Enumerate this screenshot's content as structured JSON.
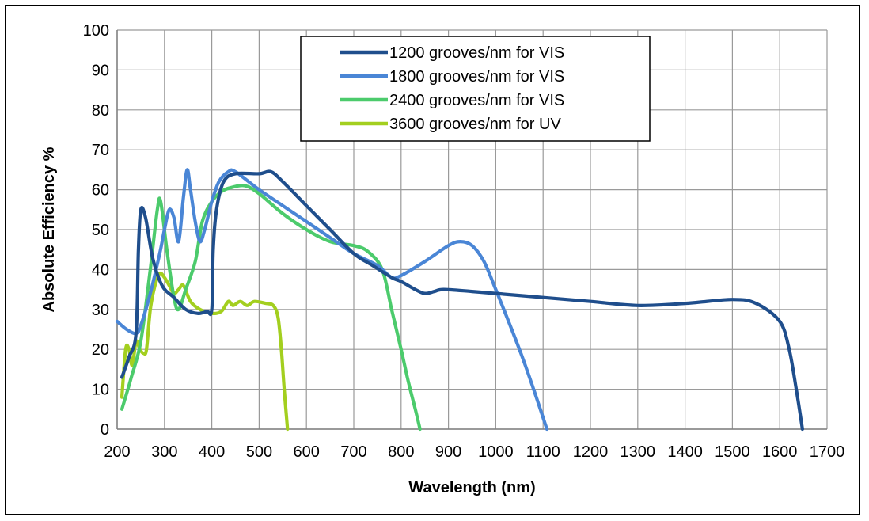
{
  "chart_data": {
    "type": "line",
    "title": "",
    "xlabel": "Wavelength (nm)",
    "ylabel": "Absolute  Efficiency %",
    "xlim": [
      200,
      1700
    ],
    "ylim": [
      0,
      100
    ],
    "xticks": [
      200,
      300,
      400,
      500,
      600,
      700,
      800,
      900,
      1000,
      1100,
      1200,
      1300,
      1400,
      1500,
      1600,
      1700
    ],
    "yticks": [
      0,
      10,
      20,
      30,
      40,
      50,
      60,
      70,
      80,
      90,
      100
    ],
    "grid": true,
    "legend_position": "top-center",
    "series": [
      {
        "name": "1200 grooves/nm for VIS",
        "color": "#1f4e8c",
        "points": [
          [
            210,
            13
          ],
          [
            225,
            18
          ],
          [
            240,
            24
          ],
          [
            245,
            45
          ],
          [
            250,
            55
          ],
          [
            260,
            53
          ],
          [
            275,
            43
          ],
          [
            295,
            36
          ],
          [
            320,
            33
          ],
          [
            345,
            30
          ],
          [
            370,
            29
          ],
          [
            390,
            29.5
          ],
          [
            400,
            30
          ],
          [
            403,
            45
          ],
          [
            410,
            55
          ],
          [
            425,
            62
          ],
          [
            450,
            64
          ],
          [
            500,
            64
          ],
          [
            525,
            64.5
          ],
          [
            550,
            62
          ],
          [
            600,
            56
          ],
          [
            650,
            50
          ],
          [
            700,
            44
          ],
          [
            740,
            41
          ],
          [
            780,
            38
          ],
          [
            800,
            37
          ],
          [
            830,
            35
          ],
          [
            850,
            34
          ],
          [
            870,
            34.5
          ],
          [
            890,
            35
          ],
          [
            950,
            34.5
          ],
          [
            1000,
            34
          ],
          [
            1100,
            33
          ],
          [
            1200,
            32
          ],
          [
            1300,
            31
          ],
          [
            1400,
            31.5
          ],
          [
            1500,
            32.5
          ],
          [
            1550,
            31.5
          ],
          [
            1600,
            27
          ],
          [
            1620,
            20
          ],
          [
            1635,
            10
          ],
          [
            1648,
            0
          ]
        ]
      },
      {
        "name": "1800 grooves/nm for VIS",
        "color": "#4a86d6",
        "points": [
          [
            200,
            27
          ],
          [
            220,
            25
          ],
          [
            240,
            24
          ],
          [
            250,
            26
          ],
          [
            270,
            34
          ],
          [
            290,
            44
          ],
          [
            300,
            50
          ],
          [
            310,
            55
          ],
          [
            320,
            53
          ],
          [
            330,
            47
          ],
          [
            340,
            58
          ],
          [
            348,
            65
          ],
          [
            355,
            60
          ],
          [
            365,
            52
          ],
          [
            375,
            47
          ],
          [
            385,
            50
          ],
          [
            400,
            57
          ],
          [
            415,
            62
          ],
          [
            435,
            64.5
          ],
          [
            450,
            64.5
          ],
          [
            500,
            60
          ],
          [
            550,
            56
          ],
          [
            600,
            52
          ],
          [
            650,
            48
          ],
          [
            700,
            44
          ],
          [
            750,
            41
          ],
          [
            780,
            38
          ],
          [
            800,
            38.5
          ],
          [
            850,
            42
          ],
          [
            900,
            46
          ],
          [
            925,
            47
          ],
          [
            950,
            46
          ],
          [
            975,
            42
          ],
          [
            1000,
            35
          ],
          [
            1050,
            20
          ],
          [
            1080,
            10
          ],
          [
            1108,
            0
          ]
        ]
      },
      {
        "name": "2400 grooves/nm for VIS",
        "color": "#4ccb6c",
        "points": [
          [
            210,
            5
          ],
          [
            230,
            13
          ],
          [
            250,
            22
          ],
          [
            270,
            40
          ],
          [
            285,
            55
          ],
          [
            292,
            57
          ],
          [
            305,
            45
          ],
          [
            320,
            33
          ],
          [
            330,
            30
          ],
          [
            345,
            35
          ],
          [
            365,
            42
          ],
          [
            380,
            52
          ],
          [
            400,
            57
          ],
          [
            420,
            59.5
          ],
          [
            440,
            60.5
          ],
          [
            470,
            61
          ],
          [
            500,
            59
          ],
          [
            550,
            54
          ],
          [
            600,
            50
          ],
          [
            650,
            47
          ],
          [
            700,
            46
          ],
          [
            730,
            44.5
          ],
          [
            760,
            40
          ],
          [
            780,
            30
          ],
          [
            800,
            20
          ],
          [
            815,
            12
          ],
          [
            830,
            5
          ],
          [
            840,
            0
          ]
        ]
      },
      {
        "name": "3600 grooves/nm for UV",
        "color": "#a3cf1f",
        "points": [
          [
            210,
            8
          ],
          [
            218,
            20
          ],
          [
            225,
            20
          ],
          [
            232,
            16
          ],
          [
            240,
            22
          ],
          [
            248,
            20
          ],
          [
            256,
            19
          ],
          [
            262,
            20
          ],
          [
            270,
            30
          ],
          [
            280,
            36
          ],
          [
            290,
            39
          ],
          [
            300,
            38
          ],
          [
            310,
            36
          ],
          [
            320,
            34
          ],
          [
            330,
            35
          ],
          [
            340,
            36
          ],
          [
            355,
            32
          ],
          [
            375,
            30
          ],
          [
            400,
            29
          ],
          [
            420,
            29.5
          ],
          [
            435,
            32
          ],
          [
            445,
            31
          ],
          [
            460,
            32
          ],
          [
            475,
            31
          ],
          [
            490,
            32
          ],
          [
            515,
            31.5
          ],
          [
            530,
            31
          ],
          [
            540,
            28
          ],
          [
            547,
            20
          ],
          [
            553,
            10
          ],
          [
            560,
            0
          ]
        ]
      }
    ]
  }
}
